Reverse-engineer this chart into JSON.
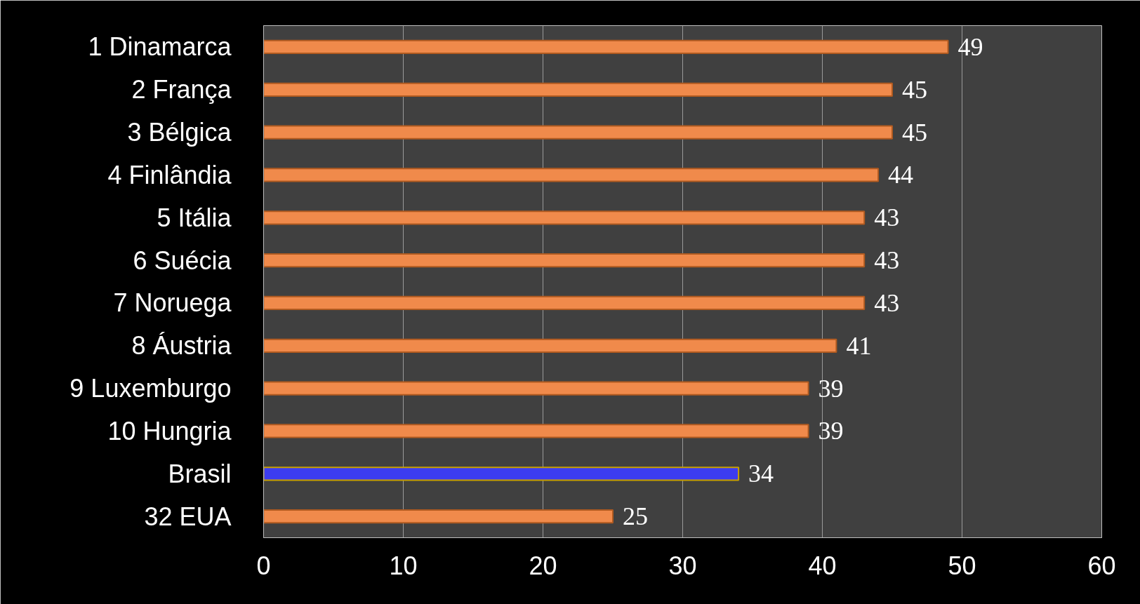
{
  "chart_data": {
    "type": "bar",
    "orientation": "horizontal",
    "categories": [
      "1 Dinamarca",
      "2 França",
      "3 Bélgica",
      "4 Finlândia",
      "5 Itália",
      "6 Suécia",
      "7 Noruega",
      "8 Áustria",
      "9 Luxemburgo",
      "10 Hungria",
      "Brasil",
      "32 EUA"
    ],
    "values": [
      49,
      45,
      45,
      44,
      43,
      43,
      43,
      41,
      39,
      39,
      34,
      25
    ],
    "colors": [
      "#f08a4b",
      "#f08a4b",
      "#f08a4b",
      "#f08a4b",
      "#f08a4b",
      "#f08a4b",
      "#f08a4b",
      "#f08a4b",
      "#f08a4b",
      "#f08a4b",
      "#3c3cf0",
      "#f08a4b"
    ],
    "xlim": [
      0,
      60
    ],
    "xticks": [
      0,
      10,
      20,
      30,
      40,
      50,
      60
    ],
    "grid": "x",
    "data_labels": true
  }
}
